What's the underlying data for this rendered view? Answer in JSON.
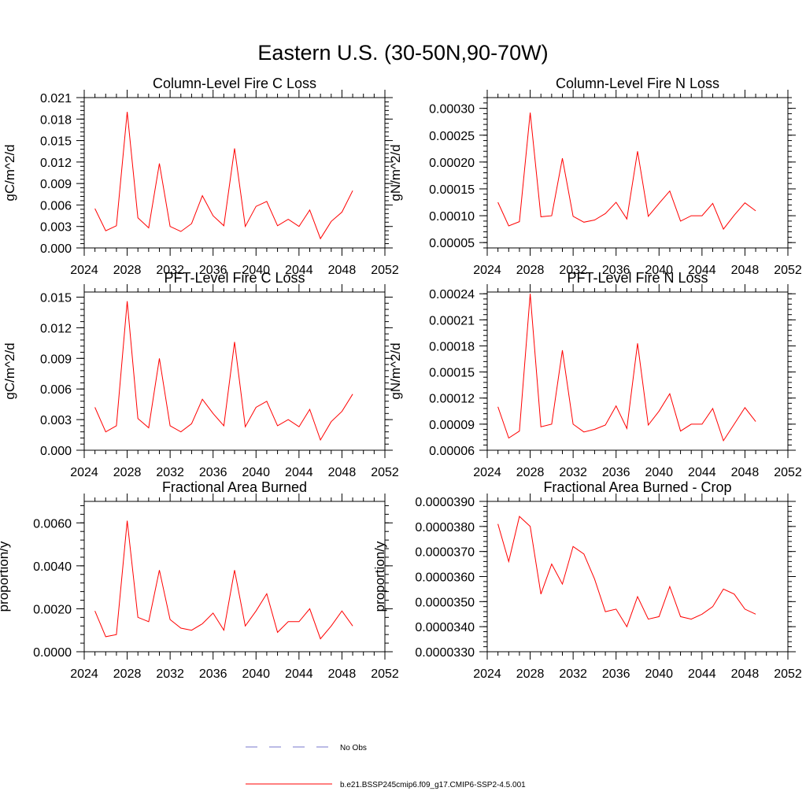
{
  "figure_title": "Eastern U.S. (30-50N,90-70W)",
  "legend": {
    "entries": [
      {
        "label": "No Obs",
        "color": "#7777cc",
        "style": "dashed"
      },
      {
        "label": "b.e21.BSSP245cmip6.f09_g17.CMIP6-SSP2-4.5.001",
        "color": "#ff0000",
        "style": "solid"
      }
    ]
  },
  "chart_data": [
    {
      "type": "line",
      "title": "Column-Level Fire C Loss",
      "ylabel": "gC/m^2/d",
      "xlim": [
        2024,
        2052
      ],
      "xticks": [
        "2024",
        "2028",
        "2032",
        "2036",
        "2040",
        "2044",
        "2048",
        "2052"
      ],
      "ylim": [
        0,
        0.021
      ],
      "yticks": [
        "0.000",
        "0.003",
        "0.006",
        "0.009",
        "0.012",
        "0.015",
        "0.018",
        "0.021"
      ],
      "x": [
        2025,
        2026,
        2027,
        2028,
        2029,
        2030,
        2031,
        2032,
        2033,
        2034,
        2035,
        2036,
        2037,
        2038,
        2039,
        2040,
        2041,
        2042,
        2043,
        2044,
        2045,
        2046,
        2047,
        2048,
        2049
      ],
      "series": [
        {
          "name": "b.e21.BSSP245cmip6.f09_g17.CMIP6-SSP2-4.5.001",
          "color": "#ff0000",
          "values": [
            0.0055,
            0.0024,
            0.0031,
            0.019,
            0.0042,
            0.0028,
            0.0118,
            0.003,
            0.0023,
            0.0034,
            0.0073,
            0.0045,
            0.0031,
            0.0139,
            0.003,
            0.0058,
            0.0065,
            0.0031,
            0.004,
            0.003,
            0.0053,
            0.0013,
            0.0037,
            0.005,
            0.008
          ]
        }
      ]
    },
    {
      "type": "line",
      "title": "Column-Level Fire N Loss",
      "ylabel": "gN/m^2/d",
      "xlim": [
        2024,
        2052
      ],
      "xticks": [
        "2024",
        "2028",
        "2032",
        "2036",
        "2040",
        "2044",
        "2048",
        "2052"
      ],
      "ylim": [
        4e-05,
        0.00032
      ],
      "yticks": [
        "0.00005",
        "0.00010",
        "0.00015",
        "0.00020",
        "0.00025",
        "0.00030"
      ],
      "ytick_values": [
        5e-05,
        0.0001,
        0.00015,
        0.0002,
        0.00025,
        0.0003
      ],
      "x": [
        2025,
        2026,
        2027,
        2028,
        2029,
        2030,
        2031,
        2032,
        2033,
        2034,
        2035,
        2036,
        2037,
        2038,
        2039,
        2040,
        2041,
        2042,
        2043,
        2044,
        2045,
        2046,
        2047,
        2048,
        2049
      ],
      "series": [
        {
          "name": "b.e21.BSSP245cmip6.f09_g17.CMIP6-SSP2-4.5.001",
          "color": "#ff0000",
          "values": [
            0.000125,
            8.1e-05,
            8.9e-05,
            0.000292,
            9.8e-05,
            0.0001,
            0.000207,
            9.9e-05,
            8.8e-05,
            9.2e-05,
            0.000104,
            0.000125,
            9.4e-05,
            0.00022,
            9.9e-05,
            0.000123,
            0.000146,
            9e-05,
            0.0001,
            0.0001,
            0.000123,
            7.5e-05,
            0.000101,
            0.000124,
            0.000109
          ]
        }
      ]
    },
    {
      "type": "line",
      "title": "PFT-Level Fire C Loss",
      "ylabel": "gC/m^2/d",
      "xlim": [
        2024,
        2052
      ],
      "xticks": [
        "2024",
        "2028",
        "2032",
        "2036",
        "2040",
        "2044",
        "2048",
        "2052"
      ],
      "ylim": [
        0,
        0.0155
      ],
      "yticks": [
        "0.000",
        "0.003",
        "0.006",
        "0.009",
        "0.012",
        "0.015"
      ],
      "ytick_values": [
        0,
        0.003,
        0.006,
        0.009,
        0.012,
        0.015
      ],
      "x": [
        2025,
        2026,
        2027,
        2028,
        2029,
        2030,
        2031,
        2032,
        2033,
        2034,
        2035,
        2036,
        2037,
        2038,
        2039,
        2040,
        2041,
        2042,
        2043,
        2044,
        2045,
        2046,
        2047,
        2048,
        2049
      ],
      "series": [
        {
          "name": "b.e21.BSSP245cmip6.f09_g17.CMIP6-SSP2-4.5.001",
          "color": "#ff0000",
          "values": [
            0.0042,
            0.0018,
            0.0024,
            0.0146,
            0.0031,
            0.0022,
            0.009,
            0.0024,
            0.0018,
            0.0026,
            0.005,
            0.0036,
            0.0024,
            0.0106,
            0.0023,
            0.0042,
            0.0048,
            0.0024,
            0.003,
            0.0023,
            0.004,
            0.001,
            0.0028,
            0.0038,
            0.0055
          ]
        }
      ]
    },
    {
      "type": "line",
      "title": "PFT-Level Fire N Loss",
      "ylabel": "gN/m^2/d",
      "xlim": [
        2024,
        2052
      ],
      "xticks": [
        "2024",
        "2028",
        "2032",
        "2036",
        "2040",
        "2044",
        "2048",
        "2052"
      ],
      "ylim": [
        6e-05,
        0.000242
      ],
      "yticks": [
        "0.00006",
        "0.00009",
        "0.00012",
        "0.00015",
        "0.00018",
        "0.00021",
        "0.00024"
      ],
      "ytick_values": [
        6e-05,
        9e-05,
        0.00012,
        0.00015,
        0.00018,
        0.00021,
        0.00024
      ],
      "x": [
        2025,
        2026,
        2027,
        2028,
        2029,
        2030,
        2031,
        2032,
        2033,
        2034,
        2035,
        2036,
        2037,
        2038,
        2039,
        2040,
        2041,
        2042,
        2043,
        2044,
        2045,
        2046,
        2047,
        2048,
        2049
      ],
      "series": [
        {
          "name": "b.e21.BSSP245cmip6.f09_g17.CMIP6-SSP2-4.5.001",
          "color": "#ff0000",
          "values": [
            0.00011,
            7.4e-05,
            8.2e-05,
            0.00024,
            8.7e-05,
            9e-05,
            0.000175,
            9e-05,
            8.1e-05,
            8.4e-05,
            8.9e-05,
            0.000111,
            8.5e-05,
            0.000183,
            8.9e-05,
            0.000105,
            0.000125,
            8.2e-05,
            9e-05,
            9e-05,
            0.000108,
            7.1e-05,
            9e-05,
            0.000109,
            9.3e-05
          ]
        }
      ]
    },
    {
      "type": "line",
      "title": "Fractional Area Burned",
      "ylabel": "proportion/y",
      "xlim": [
        2024,
        2052
      ],
      "xticks": [
        "2024",
        "2028",
        "2032",
        "2036",
        "2040",
        "2044",
        "2048",
        "2052"
      ],
      "ylim": [
        0,
        0.007
      ],
      "yticks": [
        "0.0000",
        "0.0020",
        "0.0040",
        "0.0060"
      ],
      "ytick_values": [
        0,
        0.002,
        0.004,
        0.006
      ],
      "x": [
        2025,
        2026,
        2027,
        2028,
        2029,
        2030,
        2031,
        2032,
        2033,
        2034,
        2035,
        2036,
        2037,
        2038,
        2039,
        2040,
        2041,
        2042,
        2043,
        2044,
        2045,
        2046,
        2047,
        2048,
        2049
      ],
      "series": [
        {
          "name": "b.e21.BSSP245cmip6.f09_g17.CMIP6-SSP2-4.5.001",
          "color": "#ff0000",
          "values": [
            0.0019,
            0.0007,
            0.0008,
            0.0061,
            0.0016,
            0.0014,
            0.0038,
            0.0015,
            0.0011,
            0.001,
            0.0013,
            0.0018,
            0.001,
            0.0038,
            0.0012,
            0.0019,
            0.0027,
            0.0009,
            0.0014,
            0.0014,
            0.002,
            0.0006,
            0.0012,
            0.0019,
            0.0012
          ]
        }
      ]
    },
    {
      "type": "line",
      "title": "Fractional Area Burned - Crop",
      "ylabel": "proportion/y",
      "xlim": [
        2024,
        2052
      ],
      "xticks": [
        "2024",
        "2028",
        "2032",
        "2036",
        "2040",
        "2044",
        "2048",
        "2052"
      ],
      "ylim": [
        3.3e-05,
        3.9e-05
      ],
      "yticks": [
        "0.0000330",
        "0.0000340",
        "0.0000350",
        "0.0000360",
        "0.0000370",
        "0.0000380",
        "0.0000390"
      ],
      "ytick_values": [
        3.3e-05,
        3.4e-05,
        3.5e-05,
        3.6e-05,
        3.7e-05,
        3.8e-05,
        3.9e-05
      ],
      "x": [
        2025,
        2026,
        2027,
        2028,
        2029,
        2030,
        2031,
        2032,
        2033,
        2034,
        2035,
        2036,
        2037,
        2038,
        2039,
        2040,
        2041,
        2042,
        2043,
        2044,
        2045,
        2046,
        2047,
        2048,
        2049
      ],
      "series": [
        {
          "name": "b.e21.BSSP245cmip6.f09_g17.CMIP6-SSP2-4.5.001",
          "color": "#ff0000",
          "values": [
            3.81e-05,
            3.66e-05,
            3.84e-05,
            3.8e-05,
            3.53e-05,
            3.65e-05,
            3.57e-05,
            3.72e-05,
            3.69e-05,
            3.59e-05,
            3.46e-05,
            3.47e-05,
            3.4e-05,
            3.52e-05,
            3.43e-05,
            3.44e-05,
            3.56e-05,
            3.44e-05,
            3.43e-05,
            3.45e-05,
            3.48e-05,
            3.55e-05,
            3.53e-05,
            3.47e-05,
            3.45e-05
          ]
        }
      ]
    }
  ]
}
